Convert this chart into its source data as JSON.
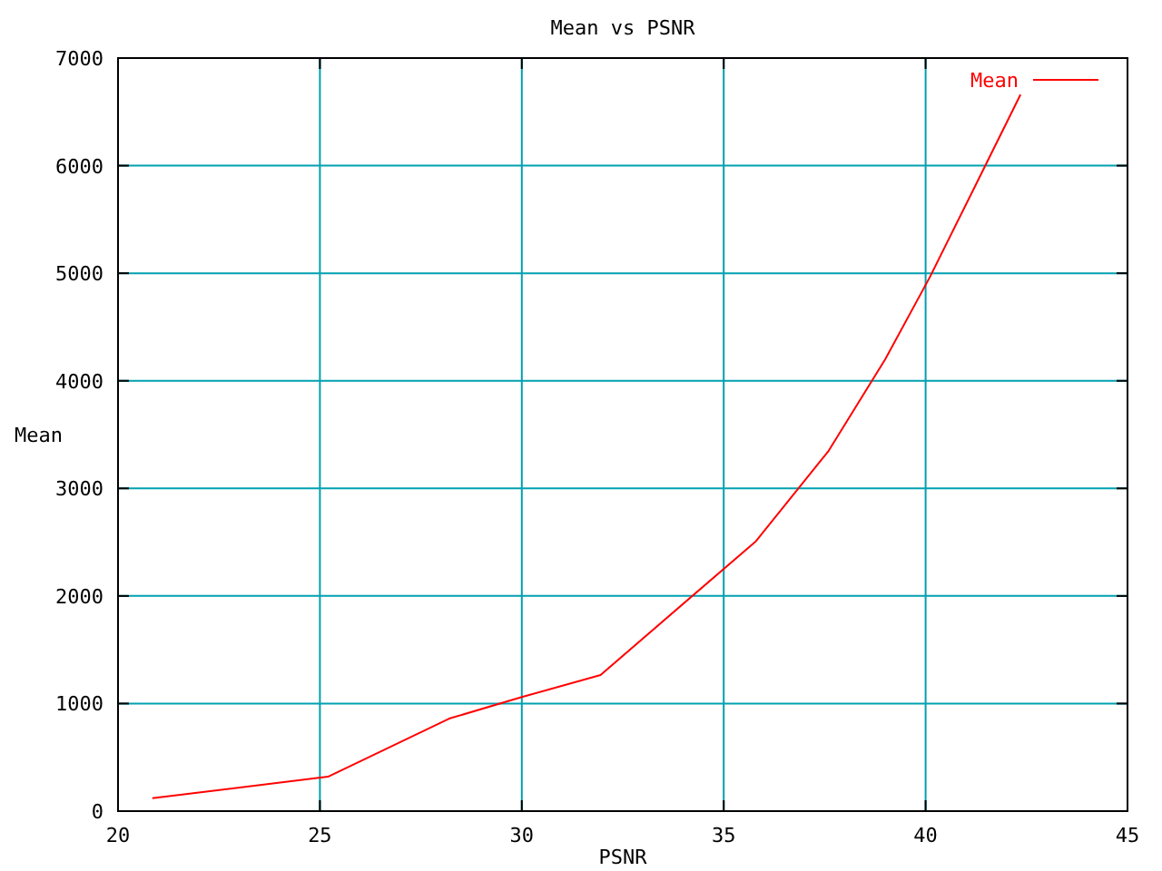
{
  "chart_data": {
    "type": "line",
    "title": "Mean vs PSNR",
    "xlabel": "PSNR",
    "ylabel": "Mean",
    "series": [
      {
        "name": "Mean",
        "color": "#ff0000",
        "x": [
          20.85,
          25.2,
          28.2,
          30.0,
          31.95,
          35.8,
          37.6,
          39.0,
          40.1,
          41.2,
          42.35
        ],
        "values": [
          120,
          320,
          860,
          1060,
          1265,
          2510,
          3350,
          4200,
          4960,
          5790,
          6660
        ]
      }
    ],
    "xlim": [
      20,
      45
    ],
    "xticks": [
      20,
      25,
      30,
      35,
      40,
      45
    ],
    "ylim": [
      0,
      7000
    ],
    "yticks": [
      0,
      1000,
      2000,
      3000,
      4000,
      5000,
      6000,
      7000
    ],
    "grid": true,
    "legend": "top right",
    "marker": "none",
    "line_style": "solid"
  }
}
